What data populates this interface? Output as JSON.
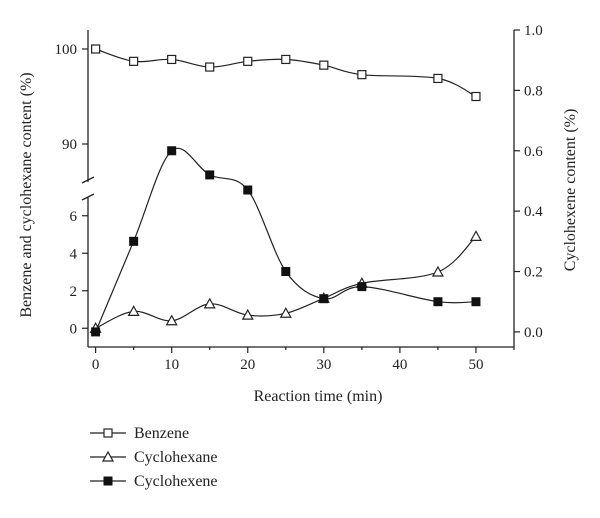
{
  "chart_data": {
    "type": "line",
    "title": "",
    "xlabel": "Reaction time (min)",
    "ylabel_left": "Benzene and cyclohexane content (%)",
    "ylabel_right": "Cyclohexene content (%)",
    "xlim": [
      -1,
      55
    ],
    "xticks": [
      0,
      10,
      20,
      30,
      40,
      50
    ],
    "ylim_left_lower": [
      -1,
      7
    ],
    "ylim_left_upper": [
      86,
      102
    ],
    "yticks_left_lower": [
      0,
      2,
      4,
      6
    ],
    "yticks_left_upper": [
      90,
      100
    ],
    "ylim_right": [
      -0.05,
      1.0
    ],
    "yticks_right": [
      "0.0",
      "0.2",
      "0.4",
      "0.6",
      "0.8",
      "1.0"
    ],
    "axis_break": true,
    "grid": false,
    "legend_position": "bottom-left",
    "series": [
      {
        "name": "Benzene",
        "axis": "left",
        "marker": "open-square",
        "x": [
          0,
          5,
          10,
          15,
          20,
          25,
          30,
          35,
          45,
          50
        ],
        "y": [
          100,
          98.7,
          98.9,
          98.1,
          98.7,
          98.9,
          98.3,
          97.3,
          96.9,
          95.0
        ]
      },
      {
        "name": "Cyclohexane",
        "axis": "left",
        "marker": "open-triangle",
        "x": [
          0,
          5,
          10,
          15,
          20,
          25,
          30,
          35,
          45,
          50
        ],
        "y": [
          0.0,
          0.9,
          0.4,
          1.3,
          0.7,
          0.8,
          1.6,
          2.4,
          3.0,
          4.9
        ]
      },
      {
        "name": "Cyclohexene",
        "axis": "right",
        "marker": "filled-square",
        "x": [
          0,
          5,
          10,
          15,
          20,
          25,
          30,
          35,
          45,
          50
        ],
        "y": [
          0.0,
          0.3,
          0.6,
          0.52,
          0.47,
          0.2,
          0.11,
          0.15,
          0.1,
          0.1
        ]
      }
    ]
  }
}
